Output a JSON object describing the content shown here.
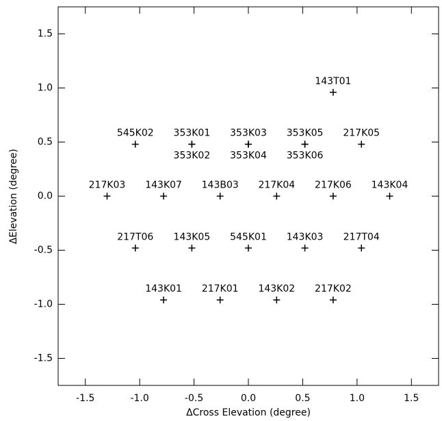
{
  "chart_data": {
    "type": "scatter",
    "xlabel": "ΔCross Elevation (degree)",
    "ylabel": "ΔElevation (degree)",
    "xlim": [
      -1.75,
      1.75
    ],
    "ylim": [
      -1.75,
      1.75
    ],
    "xticks": [
      -1.5,
      {
        "value": -1,
        "label": "-1.0"
      },
      -0.5,
      {
        "value": 0,
        "label": "0.0"
      },
      0.5,
      {
        "value": 1,
        "label": "1.0"
      },
      1.5
    ],
    "yticks": [
      -1.5,
      {
        "value": -1,
        "label": "-1.0"
      },
      -0.5,
      {
        "value": 0,
        "label": "0.0"
      },
      0.5,
      {
        "value": 1,
        "label": "1.0"
      },
      1.5
    ],
    "color": "#000000",
    "labels": [
      "143T01",
      "545K02",
      "353K01",
      "353K02",
      "353K03",
      "353K04",
      "353K05",
      "353K06",
      "217K05",
      "217K03",
      "143K07",
      "143B03",
      "217K04",
      "217K06",
      "143K04",
      "217T06",
      "143K05",
      "545K01",
      "143K03",
      "217T04",
      "143K01",
      "217K01",
      "143K02",
      "217K02"
    ],
    "x": [
      0.78,
      -1.04,
      -0.52,
      -0.52,
      0,
      0,
      0.52,
      0.52,
      1.04,
      -1.3,
      -0.78,
      -0.26,
      0.26,
      0.78,
      1.3,
      -1.04,
      -0.52,
      0,
      0.52,
      1.04,
      -0.78,
      -0.26,
      0.26,
      0.78
    ],
    "values": [
      0.96,
      0.48,
      0.48,
      0.48,
      0.48,
      0.48,
      0.48,
      0.48,
      0.48,
      0,
      0,
      0,
      0,
      0,
      0,
      -0.48,
      -0.48,
      -0.48,
      -0.48,
      -0.48,
      -0.96,
      -0.96,
      -0.96,
      -0.96
    ]
  }
}
